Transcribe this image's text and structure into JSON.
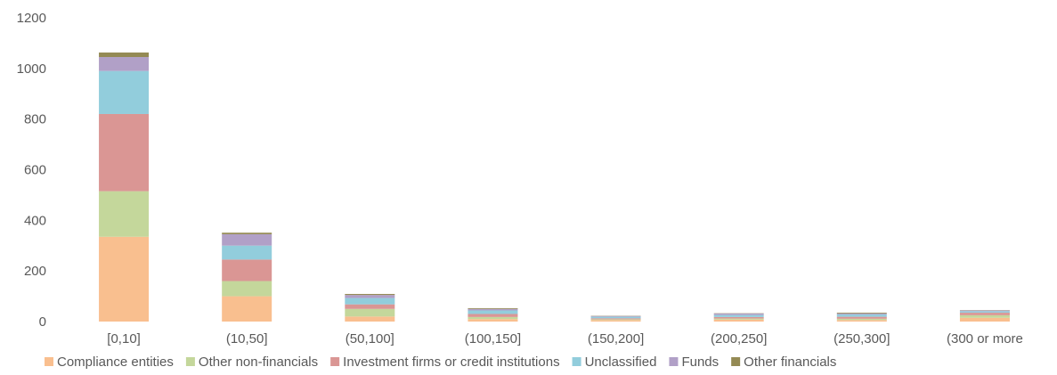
{
  "chart_data": {
    "type": "bar",
    "stacked": true,
    "title": "",
    "xlabel": "",
    "ylabel": "",
    "ylim": [
      0,
      1200
    ],
    "yticks": [
      0,
      200,
      400,
      600,
      800,
      1000,
      1200
    ],
    "grid": false,
    "legend_position": "bottom",
    "categories": [
      "[0,10]",
      "(10,50]",
      "(50,100]",
      "(100,150]",
      "(150,200]",
      "(200,250]",
      "(250,300]",
      "(300 or more"
    ],
    "series": [
      {
        "name": "Compliance entities",
        "color": "#F9BF8F",
        "values": [
          335,
          100,
          20,
          10,
          6,
          8,
          6,
          15
        ]
      },
      {
        "name": "Other non-financials",
        "color": "#C4D79B",
        "values": [
          180,
          60,
          30,
          8,
          3,
          4,
          5,
          10
        ]
      },
      {
        "name": "Investment firms or credit institutions",
        "color": "#DA9694",
        "values": [
          305,
          85,
          18,
          12,
          4,
          6,
          8,
          10
        ]
      },
      {
        "name": "Unclassified",
        "color": "#92CDDC",
        "values": [
          170,
          55,
          25,
          14,
          6,
          8,
          9,
          6
        ]
      },
      {
        "name": "Funds",
        "color": "#B1A0C7",
        "values": [
          55,
          45,
          12,
          6,
          3,
          6,
          4,
          3
        ]
      },
      {
        "name": "Other financials",
        "color": "#948A54",
        "values": [
          18,
          6,
          4,
          3,
          1,
          1,
          3,
          1
        ]
      }
    ]
  }
}
